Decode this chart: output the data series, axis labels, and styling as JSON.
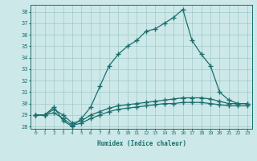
{
  "xlabel": "Humidex (Indice chaleur)",
  "background_color": "#cde8e8",
  "grid_color": "#a0c8c8",
  "line_color": "#1a6e6e",
  "x_values": [
    0,
    1,
    2,
    3,
    4,
    5,
    6,
    7,
    8,
    9,
    10,
    11,
    12,
    13,
    14,
    15,
    16,
    17,
    18,
    19,
    20,
    21,
    22,
    23
  ],
  "line1_y": [
    29,
    29,
    29.7,
    28.5,
    28.0,
    28.7,
    29.7,
    31.5,
    33.3,
    34.3,
    35.0,
    35.5,
    36.3,
    36.5,
    37.0,
    37.5,
    38.2,
    35.5,
    34.3,
    33.3,
    31.0,
    30.3,
    30.0,
    30.0
  ],
  "line2_y": [
    29,
    29,
    29.5,
    29.0,
    28.3,
    28.5,
    29.0,
    29.3,
    29.6,
    29.8,
    29.9,
    30.0,
    30.1,
    30.2,
    30.3,
    30.4,
    30.5,
    30.5,
    30.5,
    30.4,
    30.2,
    30.0,
    30.0,
    30.0
  ],
  "line3_y": [
    29,
    29,
    29.2,
    28.7,
    28.1,
    28.3,
    28.7,
    29.0,
    29.3,
    29.5,
    29.6,
    29.7,
    29.8,
    29.9,
    30.0,
    30.0,
    30.1,
    30.1,
    30.1,
    30.0,
    29.9,
    29.8,
    29.8,
    29.8
  ],
  "ylim": [
    27.8,
    38.6
  ],
  "xlim": [
    -0.5,
    23.5
  ],
  "yticks": [
    28,
    29,
    30,
    31,
    32,
    33,
    34,
    35,
    36,
    37,
    38
  ],
  "xticks": [
    0,
    1,
    2,
    3,
    4,
    5,
    6,
    7,
    8,
    9,
    10,
    11,
    12,
    13,
    14,
    15,
    16,
    17,
    18,
    19,
    20,
    21,
    22,
    23
  ]
}
